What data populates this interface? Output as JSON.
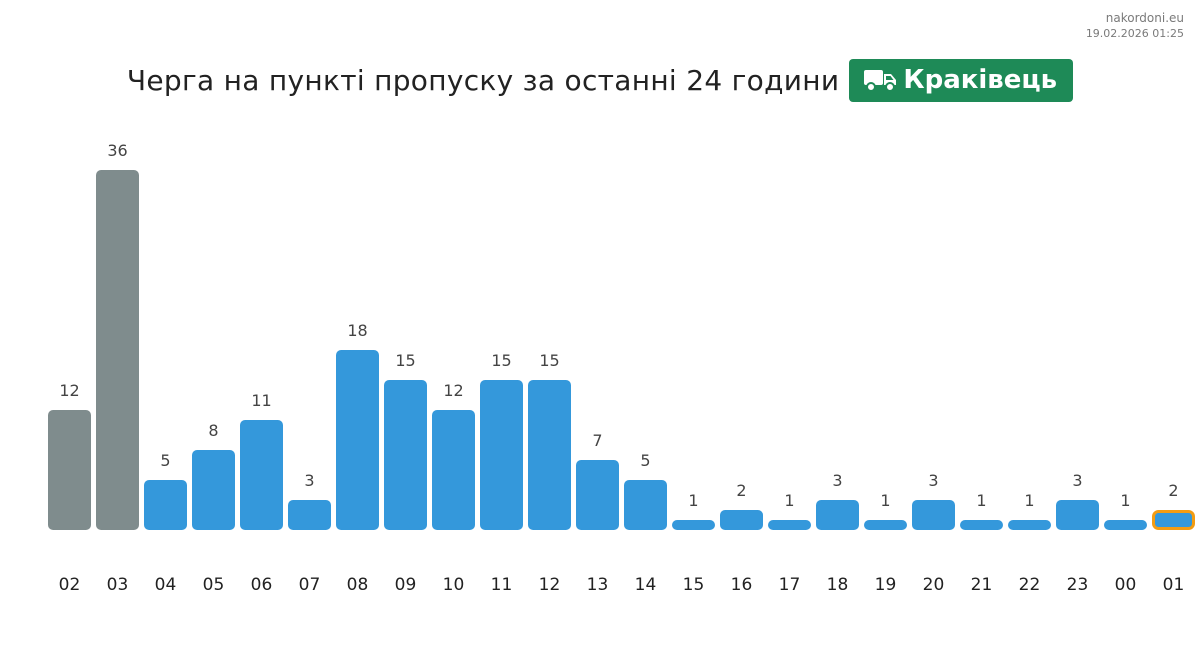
{
  "site": {
    "name": "nakordoni.eu",
    "timestamp": "19.02.2026 01:25"
  },
  "header": {
    "title": "Черга на пункті пропуску за останні 24 години",
    "checkpoint": "Краківець",
    "checkpoint_icon": "truck-icon",
    "badge_color": "#1e8a57"
  },
  "chart_data": {
    "type": "bar",
    "categories": [
      "02",
      "03",
      "04",
      "05",
      "06",
      "07",
      "08",
      "09",
      "10",
      "11",
      "12",
      "13",
      "14",
      "15",
      "16",
      "17",
      "18",
      "19",
      "20",
      "21",
      "22",
      "23",
      "00",
      "01"
    ],
    "values": [
      12,
      36,
      5,
      8,
      11,
      3,
      18,
      15,
      12,
      15,
      15,
      7,
      5,
      1,
      2,
      1,
      3,
      1,
      3,
      1,
      1,
      3,
      1,
      2
    ],
    "bar_colors": [
      "#7f8c8d",
      "#7f8c8d",
      "#3498db",
      "#3498db",
      "#3498db",
      "#3498db",
      "#3498db",
      "#3498db",
      "#3498db",
      "#3498db",
      "#3498db",
      "#3498db",
      "#3498db",
      "#3498db",
      "#3498db",
      "#3498db",
      "#3498db",
      "#3498db",
      "#3498db",
      "#3498db",
      "#3498db",
      "#3498db",
      "#3498db",
      "#3498db"
    ],
    "highlight_index": 23,
    "highlight_color": "#f39c12",
    "xlabel": "",
    "ylabel": "",
    "grid": false,
    "legend": "none"
  }
}
